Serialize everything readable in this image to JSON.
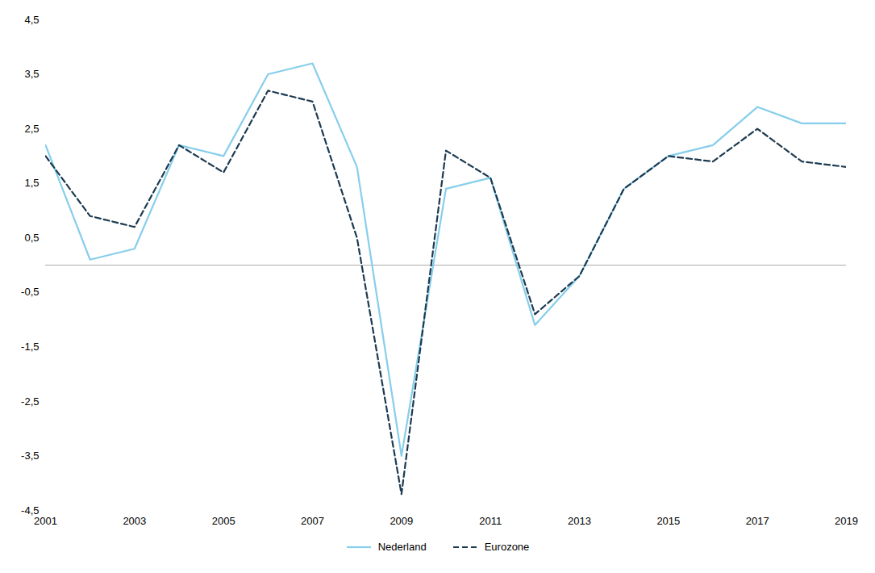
{
  "chart_data": {
    "type": "line",
    "x": [
      2001,
      2002,
      2003,
      2004,
      2005,
      2006,
      2007,
      2008,
      2009,
      2010,
      2011,
      2012,
      2013,
      2014,
      2015,
      2016,
      2017,
      2018,
      2019
    ],
    "series": [
      {
        "name": "Nederland",
        "color": "#87CEEB",
        "line_style": "solid",
        "values": [
          2.2,
          0.1,
          0.3,
          2.2,
          2.0,
          3.5,
          3.7,
          1.8,
          -3.5,
          1.4,
          1.6,
          -1.1,
          -0.2,
          1.4,
          2.0,
          2.2,
          2.9,
          2.6,
          2.6
        ]
      },
      {
        "name": "Eurozone",
        "color": "#1C3A50",
        "line_style": "dashed",
        "values": [
          2.0,
          0.9,
          0.7,
          2.2,
          1.7,
          3.2,
          3.0,
          0.5,
          -4.2,
          2.1,
          1.6,
          -0.9,
          -0.2,
          1.4,
          2.0,
          1.9,
          2.5,
          1.9,
          1.8
        ]
      }
    ],
    "xlim": [
      2001,
      2019
    ],
    "xticks": [
      2001,
      2003,
      2005,
      2007,
      2009,
      2011,
      2013,
      2015,
      2017,
      2019
    ],
    "ylim": [
      -4.5,
      4.5
    ],
    "yticks": [
      {
        "value": -4.5,
        "label": "-4,5"
      },
      {
        "value": -3.5,
        "label": "-3,5"
      },
      {
        "value": -2.5,
        "label": "-2,5"
      },
      {
        "value": -1.5,
        "label": "-1,5"
      },
      {
        "value": -0.5,
        "label": "-0,5"
      },
      {
        "value": 0.5,
        "label": "0,5"
      },
      {
        "value": 1.5,
        "label": "1,5"
      },
      {
        "value": 2.5,
        "label": "2,5"
      },
      {
        "value": 3.5,
        "label": "3,5"
      },
      {
        "value": 4.5,
        "label": "4,5"
      }
    ],
    "hlines": [
      {
        "y": 0.0,
        "color": "#aaaaaa"
      }
    ],
    "grid": false,
    "legend": "bottom"
  }
}
